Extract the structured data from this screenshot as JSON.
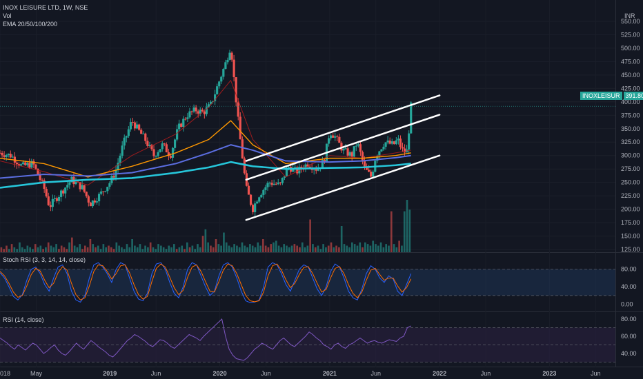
{
  "header": {
    "symbol_line": "INOX LEISURE LTD, 1W, NSE",
    "volume_label": "Vol",
    "ema_label": "EMA 20/50/100/200",
    "stoch_label": "Stoch RSI (3, 3, 14, 14, close)",
    "rsi_label": "RSI (14, close)",
    "currency": "INR",
    "ticker_badge": "INOXLEISUR",
    "last_price": "391.80"
  },
  "colors": {
    "background": "#131722",
    "up": "#26a69a",
    "down": "#ef5350",
    "ema20": "#b71c1c",
    "ema50": "#ff9800",
    "ema100": "#5b6ee1",
    "ema200": "#26c6da",
    "channel": "#ffffff",
    "stoch_k": "#2962ff",
    "stoch_d": "#ff6d00",
    "rsi": "#7e57c2",
    "band": "#1e3a5f"
  },
  "time_axis": [
    "018",
    "May",
    "2019",
    "Jun",
    "2020",
    "Jun",
    "2021",
    "Jun",
    "2022",
    "Jun",
    "2023",
    "Jun"
  ],
  "chart_data": [
    {
      "type": "candlestick",
      "title": "INOX LEISURE LTD, 1W, NSE",
      "ylabel": "INR",
      "ylim": [
        120,
        555
      ],
      "y_ticks": [
        "550.00",
        "525.00",
        "500.00",
        "475.00",
        "450.00",
        "425.00",
        "400.00",
        "375.00",
        "350.00",
        "325.00",
        "300.00",
        "275.00",
        "250.00",
        "225.00",
        "200.00",
        "175.00",
        "150.00",
        "125.00"
      ],
      "x_range": [
        2018.0,
        2023.6
      ],
      "price_path": [
        [
          2018.0,
          305
        ],
        [
          2018.1,
          300
        ],
        [
          2018.2,
          280
        ],
        [
          2018.3,
          285
        ],
        [
          2018.4,
          240
        ],
        [
          2018.45,
          205
        ],
        [
          2018.55,
          230
        ],
        [
          2018.65,
          255
        ],
        [
          2018.75,
          240
        ],
        [
          2018.82,
          210
        ],
        [
          2018.9,
          225
        ],
        [
          2019.0,
          250
        ],
        [
          2019.05,
          270
        ],
        [
          2019.12,
          320
        ],
        [
          2019.2,
          365
        ],
        [
          2019.25,
          350
        ],
        [
          2019.32,
          330
        ],
        [
          2019.4,
          300
        ],
        [
          2019.48,
          320
        ],
        [
          2019.55,
          300
        ],
        [
          2019.62,
          350
        ],
        [
          2019.7,
          375
        ],
        [
          2019.78,
          385
        ],
        [
          2019.85,
          380
        ],
        [
          2019.92,
          395
        ],
        [
          2019.98,
          430
        ],
        [
          2020.05,
          470
        ],
        [
          2020.1,
          505
        ],
        [
          2020.14,
          420
        ],
        [
          2020.18,
          340
        ],
        [
          2020.24,
          240
        ],
        [
          2020.3,
          200
        ],
        [
          2020.35,
          225
        ],
        [
          2020.45,
          250
        ],
        [
          2020.55,
          245
        ],
        [
          2020.62,
          280
        ],
        [
          2020.7,
          270
        ],
        [
          2020.8,
          285
        ],
        [
          2020.88,
          275
        ],
        [
          2020.95,
          290
        ],
        [
          2021.0,
          345
        ],
        [
          2021.05,
          335
        ],
        [
          2021.12,
          310
        ],
        [
          2021.2,
          300
        ],
        [
          2021.25,
          325
        ],
        [
          2021.32,
          275
        ],
        [
          2021.38,
          260
        ],
        [
          2021.42,
          300
        ],
        [
          2021.5,
          325
        ],
        [
          2021.58,
          320
        ],
        [
          2021.62,
          330
        ],
        [
          2021.66,
          310
        ],
        [
          2021.7,
          305
        ],
        [
          2021.72,
          345
        ],
        [
          2021.74,
          392
        ]
      ],
      "ema_series": [
        {
          "name": "EMA 20",
          "points": [
            [
              2018.0,
              290
            ],
            [
              2018.4,
              270
            ],
            [
              2018.8,
              245
            ],
            [
              2019.2,
              300
            ],
            [
              2019.6,
              340
            ],
            [
              2019.9,
              390
            ],
            [
              2020.1,
              440
            ],
            [
              2020.3,
              330
            ],
            [
              2020.6,
              260
            ],
            [
              2021.0,
              300
            ],
            [
              2021.3,
              295
            ],
            [
              2021.6,
              305
            ],
            [
              2021.74,
              310
            ]
          ]
        },
        {
          "name": "EMA 50",
          "points": [
            [
              2018.0,
              295
            ],
            [
              2018.4,
              285
            ],
            [
              2018.8,
              260
            ],
            [
              2019.2,
              280
            ],
            [
              2019.6,
              305
            ],
            [
              2019.9,
              330
            ],
            [
              2020.1,
              365
            ],
            [
              2020.3,
              320
            ],
            [
              2020.6,
              285
            ],
            [
              2021.0,
              295
            ],
            [
              2021.3,
              295
            ],
            [
              2021.6,
              300
            ],
            [
              2021.74,
              305
            ]
          ]
        },
        {
          "name": "EMA 100",
          "points": [
            [
              2018.0,
              258
            ],
            [
              2018.4,
              265
            ],
            [
              2018.8,
              262
            ],
            [
              2019.2,
              268
            ],
            [
              2019.6,
              285
            ],
            [
              2019.9,
              305
            ],
            [
              2020.1,
              320
            ],
            [
              2020.3,
              310
            ],
            [
              2020.6,
              290
            ],
            [
              2021.0,
              288
            ],
            [
              2021.3,
              290
            ],
            [
              2021.6,
              296
            ],
            [
              2021.74,
              300
            ]
          ]
        },
        {
          "name": "EMA 200",
          "points": [
            [
              2018.0,
              240
            ],
            [
              2018.4,
              250
            ],
            [
              2018.8,
              255
            ],
            [
              2019.2,
              258
            ],
            [
              2019.6,
              268
            ],
            [
              2019.9,
              278
            ],
            [
              2020.1,
              288
            ],
            [
              2020.3,
              280
            ],
            [
              2020.6,
              275
            ],
            [
              2021.0,
              277
            ],
            [
              2021.3,
              278
            ],
            [
              2021.6,
              282
            ],
            [
              2021.74,
              285
            ]
          ]
        }
      ],
      "trend_lines": [
        {
          "name": "channel-top",
          "points": [
            [
              2020.24,
              290
            ],
            [
              2022.0,
              412
            ]
          ]
        },
        {
          "name": "channel-mid",
          "points": [
            [
              2020.24,
              255
            ],
            [
              2022.0,
              376
            ]
          ]
        },
        {
          "name": "channel-bottom",
          "points": [
            [
              2020.24,
              180
            ],
            [
              2022.0,
              300
            ]
          ]
        }
      ],
      "last_value": 391.8
    },
    {
      "type": "bar",
      "title": "Vol",
      "series": [
        {
          "name": "Vol",
          "values": [
            3,
            2,
            4,
            2,
            5,
            3,
            2,
            6,
            3,
            2,
            4,
            3,
            2,
            5,
            3,
            4,
            2,
            3,
            6,
            4,
            3,
            5,
            2,
            4,
            3,
            2,
            6,
            9,
            4,
            3,
            5,
            2,
            4,
            3,
            8,
            5,
            3,
            4,
            2,
            5,
            3,
            4,
            3,
            2,
            6,
            4,
            3,
            2,
            5,
            3,
            8,
            4,
            3,
            5,
            2,
            4,
            3,
            6,
            3,
            2,
            5,
            4,
            3,
            2,
            4,
            3,
            5,
            2,
            3,
            4,
            2,
            6,
            3,
            4,
            2,
            5,
            3,
            10,
            14,
            6,
            4,
            3,
            8,
            5,
            4,
            12,
            6,
            4,
            3,
            5,
            4,
            3,
            6,
            4,
            3,
            5,
            4,
            3,
            6,
            4,
            8,
            4,
            3,
            5,
            6,
            7,
            4,
            3,
            5,
            4,
            3,
            4,
            5,
            4,
            3,
            6,
            3,
            4,
            20,
            5,
            3,
            4,
            2,
            5,
            3,
            4,
            6,
            3,
            4,
            3,
            16,
            5,
            4,
            3,
            6,
            5,
            4,
            6,
            3,
            6,
            5,
            4,
            7,
            5,
            4,
            6,
            3,
            5,
            4,
            25,
            5,
            3,
            7,
            4,
            25,
            32,
            26
          ]
        }
      ]
    },
    {
      "type": "line",
      "title": "Stoch RSI (3, 3, 14, 14, close)",
      "ylim": [
        -10,
        100
      ],
      "y_ticks": [
        "80.00",
        "40.00",
        "0.00"
      ],
      "band": [
        20,
        80
      ],
      "series": [
        {
          "name": "K",
          "values": [
            72,
            60,
            40,
            18,
            10,
            22,
            55,
            80,
            85,
            70,
            45,
            30,
            60,
            85,
            90,
            70,
            30,
            10,
            5,
            20,
            60,
            90,
            95,
            85,
            70,
            50,
            80,
            95,
            90,
            60,
            30,
            12,
            8,
            25,
            70,
            92,
            95,
            80,
            50,
            25,
            15,
            40,
            80,
            95,
            90,
            65,
            40,
            20,
            30,
            65,
            90,
            95,
            85,
            60,
            30,
            8,
            4,
            5,
            10,
            40,
            85,
            95,
            90,
            70,
            45,
            30,
            55,
            80,
            90,
            85,
            60,
            35,
            20,
            40,
            75,
            92,
            85,
            60,
            30,
            15,
            10,
            35,
            70,
            88,
            80,
            60,
            50,
            65,
            58,
            30,
            20,
            45,
            70
          ]
        },
        {
          "name": "D",
          "values": [
            75,
            65,
            48,
            28,
            16,
            20,
            42,
            68,
            82,
            76,
            55,
            38,
            48,
            72,
            86,
            78,
            48,
            22,
            10,
            15,
            42,
            75,
            90,
            88,
            75,
            58,
            70,
            88,
            90,
            72,
            45,
            22,
            12,
            18,
            52,
            82,
            92,
            85,
            62,
            38,
            22,
            32,
            62,
            85,
            90,
            75,
            52,
            30,
            28,
            52,
            78,
            92,
            88,
            70,
            45,
            20,
            8,
            6,
            8,
            28,
            65,
            88,
            92,
            78,
            56,
            38,
            48,
            68,
            84,
            86,
            70,
            48,
            28,
            34,
            60,
            82,
            86,
            70,
            45,
            25,
            15,
            28,
            55,
            78,
            82,
            68,
            55,
            60,
            60,
            42,
            28,
            38,
            58
          ]
        }
      ]
    },
    {
      "type": "line",
      "title": "RSI (14, close)",
      "ylim": [
        28,
        84
      ],
      "y_ticks": [
        "80.00",
        "60.00",
        "40.00"
      ],
      "band": [
        30,
        70
      ],
      "series": [
        {
          "name": "RSI",
          "values": [
            58,
            55,
            52,
            48,
            45,
            50,
            47,
            44,
            48,
            52,
            50,
            45,
            40,
            43,
            47,
            50,
            44,
            40,
            38,
            42,
            47,
            52,
            48,
            45,
            50,
            55,
            52,
            48,
            45,
            42,
            38,
            36,
            40,
            45,
            50,
            55,
            58,
            62,
            60,
            57,
            54,
            50,
            48,
            52,
            56,
            55,
            52,
            48,
            46,
            50,
            54,
            58,
            62,
            60,
            58,
            55,
            60,
            64,
            68,
            72,
            76,
            80,
            60,
            45,
            38,
            34,
            33,
            32,
            35,
            40,
            45,
            48,
            52,
            50,
            47,
            45,
            50,
            55,
            58,
            54,
            50,
            48,
            52,
            56,
            60,
            65,
            62,
            58,
            55,
            50,
            48,
            45,
            50,
            52,
            48,
            46,
            50,
            52,
            55,
            58,
            55,
            52,
            54,
            55,
            53,
            52,
            54,
            56,
            55,
            54,
            58,
            60,
            70,
            72
          ]
        }
      ]
    }
  ]
}
